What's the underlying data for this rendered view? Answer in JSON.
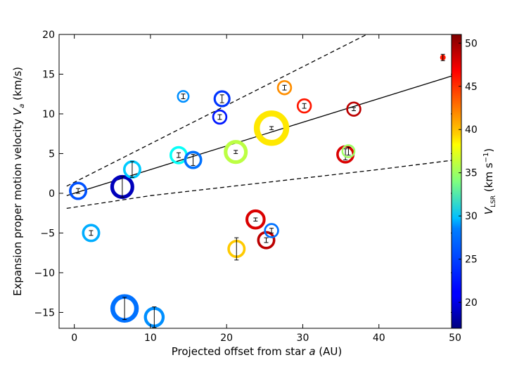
{
  "chart_data": {
    "type": "scatter",
    "title": "",
    "xlabel": "Projected offset from star a (AU)",
    "ylabel": "Expansion proper motion velocity V_a (km/s)",
    "colorbar_label": "V_LSR (km s^-1)",
    "xlim": [
      -2,
      50
    ],
    "ylim": [
      -17,
      20
    ],
    "clim": [
      17,
      51
    ],
    "xticks": [
      0,
      10,
      20,
      30,
      40,
      50
    ],
    "yticks": [
      -15,
      -10,
      -5,
      0,
      5,
      10,
      15,
      20
    ],
    "cticks": [
      20,
      25,
      30,
      35,
      40,
      45,
      50
    ],
    "grid": false,
    "fit_lines": [
      {
        "name": "best-fit",
        "style": "solid",
        "x": [
          -1,
          50
        ],
        "y": [
          -0.3,
          14.9
        ]
      },
      {
        "name": "upper-bound",
        "style": "dashed",
        "x": [
          -1,
          38.4
        ],
        "y": [
          0.9,
          20
        ]
      },
      {
        "name": "lower-bound",
        "style": "dashed",
        "x": [
          -1,
          10,
          20,
          30,
          40,
          50
        ],
        "y": [
          -1.9,
          -0.3,
          0.8,
          1.9,
          3.0,
          4.2
        ]
      }
    ],
    "points": [
      {
        "x": 0.5,
        "y": 0.3,
        "err": 0.3,
        "size": 1.0,
        "vlsr": 24
      },
      {
        "x": 2.2,
        "y": -5.0,
        "err": 0.3,
        "size": 1.0,
        "vlsr": 27
      },
      {
        "x": 6.3,
        "y": 0.8,
        "err": 1.3,
        "size": 1.45,
        "vlsr": 19
      },
      {
        "x": 7.6,
        "y": 3.0,
        "err": 1.0,
        "size": 1.0,
        "vlsr": 28
      },
      {
        "x": 6.6,
        "y": -14.5,
        "err": 1.4,
        "size": 1.8,
        "vlsr": 25
      },
      {
        "x": 10.5,
        "y": -15.6,
        "err": 1.3,
        "size": 1.2,
        "vlsr": 26
      },
      {
        "x": 13.7,
        "y": 4.8,
        "err": 0.3,
        "size": 1.0,
        "vlsr": 30
      },
      {
        "x": 14.3,
        "y": 12.2,
        "err": 0.3,
        "size": 0.55,
        "vlsr": 26
      },
      {
        "x": 15.6,
        "y": 4.2,
        "err": 0.7,
        "size": 1.0,
        "vlsr": 25
      },
      {
        "x": 19.1,
        "y": 9.6,
        "err": 0.3,
        "size": 0.75,
        "vlsr": 22
      },
      {
        "x": 19.4,
        "y": 11.9,
        "err": 0.5,
        "size": 0.9,
        "vlsr": 23
      },
      {
        "x": 21.2,
        "y": 5.2,
        "err": 0.2,
        "size": 1.45,
        "vlsr": 36
      },
      {
        "x": 21.3,
        "y": -7.0,
        "err": 1.4,
        "size": 1.0,
        "vlsr": 40
      },
      {
        "x": 23.8,
        "y": -3.3,
        "err": 0.2,
        "size": 1.15,
        "vlsr": 48
      },
      {
        "x": 25.2,
        "y": -5.9,
        "err": 0.3,
        "size": 1.0,
        "vlsr": 49
      },
      {
        "x": 25.9,
        "y": 8.2,
        "err": 0.2,
        "size": 2.35,
        "vlsr": 39
      },
      {
        "x": 25.9,
        "y": -4.7,
        "err": 0.3,
        "size": 0.75,
        "vlsr": 25
      },
      {
        "x": 27.6,
        "y": 13.3,
        "err": 0.3,
        "size": 0.75,
        "vlsr": 42
      },
      {
        "x": 30.2,
        "y": 11.0,
        "err": 0.3,
        "size": 0.75,
        "vlsr": 46
      },
      {
        "x": 35.6,
        "y": 4.9,
        "err": 0.7,
        "size": 1.0,
        "vlsr": 48
      },
      {
        "x": 36.0,
        "y": 5.3,
        "err": 0.5,
        "size": 0.65,
        "vlsr": 35
      },
      {
        "x": 36.7,
        "y": 10.6,
        "err": 0.2,
        "size": 0.75,
        "vlsr": 49
      },
      {
        "x": 48.4,
        "y": 17.1,
        "err": 0.4,
        "size": 0.3,
        "vlsr": 46
      }
    ]
  }
}
